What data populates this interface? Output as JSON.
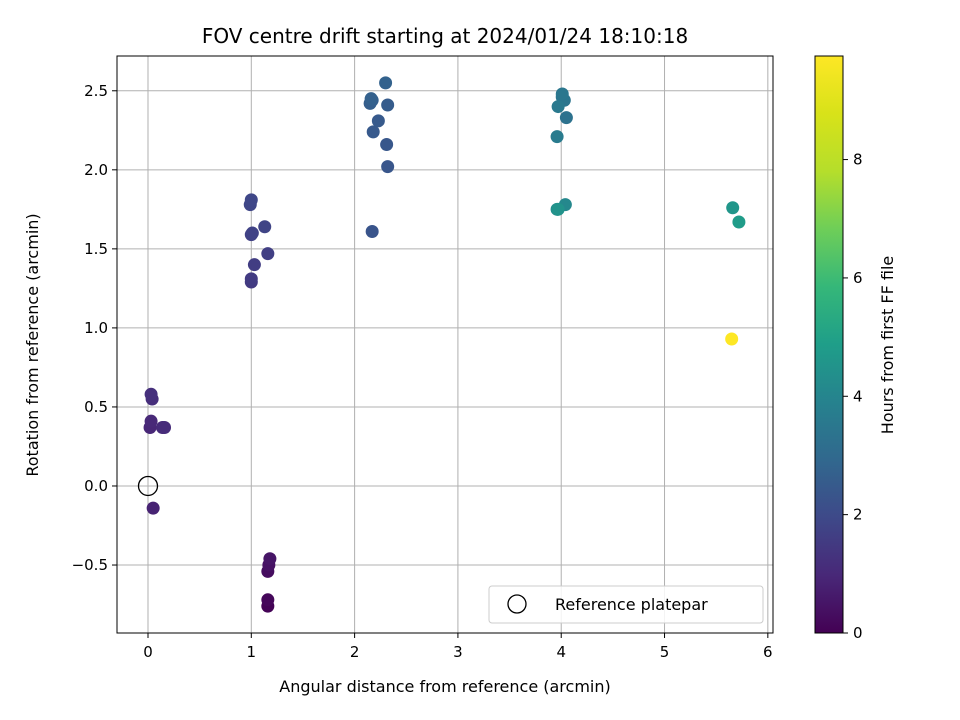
{
  "chart_data": {
    "type": "scatter",
    "title": "FOV centre drift starting at 2024/01/24 18:10:18",
    "xlabel": "Angular distance from reference (arcmin)",
    "ylabel": "Rotation from reference (arcmin)",
    "xlim": [
      -0.3,
      6.05
    ],
    "ylim": [
      -0.93,
      2.72
    ],
    "xticks": [
      0,
      1,
      2,
      3,
      4,
      5,
      6
    ],
    "xtick_labels": [
      "0",
      "1",
      "2",
      "3",
      "4",
      "5",
      "6"
    ],
    "yticks": [
      -0.5,
      0.0,
      0.5,
      1.0,
      1.5,
      2.0,
      2.5
    ],
    "ytick_labels": [
      "−0.5",
      "0.0",
      "0.5",
      "1.0",
      "1.5",
      "2.0",
      "2.5"
    ],
    "grid": true,
    "legend_location": "lower right",
    "colorbar": {
      "label": "Hours from first FF file",
      "colormap": "viridis",
      "range": [
        0,
        9.75
      ],
      "ticks": [
        0,
        2,
        4,
        6,
        8
      ],
      "tick_labels": [
        "0",
        "2",
        "4",
        "6",
        "8"
      ]
    },
    "reference": {
      "name": "Reference platepar",
      "x": 0.0,
      "y": 0.0
    },
    "points": [
      {
        "x": 1.16,
        "y": -0.76,
        "hours": 0.05
      },
      {
        "x": 1.16,
        "y": -0.72,
        "hours": 0.15
      },
      {
        "x": 1.16,
        "y": -0.54,
        "hours": 0.3
      },
      {
        "x": 1.17,
        "y": -0.5,
        "hours": 0.4
      },
      {
        "x": 1.18,
        "y": -0.46,
        "hours": 0.5
      },
      {
        "x": 0.05,
        "y": -0.14,
        "hours": 0.85
      },
      {
        "x": 0.02,
        "y": 0.37,
        "hours": 0.95
      },
      {
        "x": 0.03,
        "y": 0.41,
        "hours": 1.0
      },
      {
        "x": 0.14,
        "y": 0.37,
        "hours": 1.05
      },
      {
        "x": 0.16,
        "y": 0.37,
        "hours": 1.1
      },
      {
        "x": 0.04,
        "y": 0.55,
        "hours": 1.15
      },
      {
        "x": 0.03,
        "y": 0.58,
        "hours": 1.2
      },
      {
        "x": 1.0,
        "y": 1.29,
        "hours": 1.5
      },
      {
        "x": 1.0,
        "y": 1.31,
        "hours": 1.55
      },
      {
        "x": 1.03,
        "y": 1.4,
        "hours": 1.6
      },
      {
        "x": 1.16,
        "y": 1.47,
        "hours": 1.65
      },
      {
        "x": 1.0,
        "y": 1.59,
        "hours": 1.7
      },
      {
        "x": 1.01,
        "y": 1.6,
        "hours": 1.75
      },
      {
        "x": 1.13,
        "y": 1.64,
        "hours": 1.8
      },
      {
        "x": 0.99,
        "y": 1.78,
        "hours": 1.85
      },
      {
        "x": 1.0,
        "y": 1.81,
        "hours": 1.9
      },
      {
        "x": 2.17,
        "y": 1.61,
        "hours": 2.3
      },
      {
        "x": 2.32,
        "y": 2.02,
        "hours": 2.35
      },
      {
        "x": 2.31,
        "y": 2.16,
        "hours": 2.4
      },
      {
        "x": 2.18,
        "y": 2.24,
        "hours": 2.45
      },
      {
        "x": 2.23,
        "y": 2.31,
        "hours": 2.5
      },
      {
        "x": 2.32,
        "y": 2.41,
        "hours": 2.55
      },
      {
        "x": 2.15,
        "y": 2.42,
        "hours": 2.6
      },
      {
        "x": 2.17,
        "y": 2.44,
        "hours": 2.65
      },
      {
        "x": 2.16,
        "y": 2.45,
        "hours": 2.7
      },
      {
        "x": 2.3,
        "y": 2.55,
        "hours": 2.75
      },
      {
        "x": 4.05,
        "y": 2.33,
        "hours": 3.3
      },
      {
        "x": 4.03,
        "y": 2.44,
        "hours": 3.4
      },
      {
        "x": 4.01,
        "y": 2.46,
        "hours": 3.45
      },
      {
        "x": 4.01,
        "y": 2.48,
        "hours": 3.5
      },
      {
        "x": 3.97,
        "y": 2.4,
        "hours": 3.55
      },
      {
        "x": 3.96,
        "y": 2.21,
        "hours": 3.65
      },
      {
        "x": 4.04,
        "y": 1.78,
        "hours": 4.1
      },
      {
        "x": 3.96,
        "y": 1.75,
        "hours": 4.3
      },
      {
        "x": 3.97,
        "y": 1.75,
        "hours": 4.5
      },
      {
        "x": 5.66,
        "y": 1.76,
        "hours": 4.6
      },
      {
        "x": 5.72,
        "y": 1.67,
        "hours": 4.8
      },
      {
        "x": 5.65,
        "y": 0.93,
        "hours": 9.75
      }
    ]
  }
}
